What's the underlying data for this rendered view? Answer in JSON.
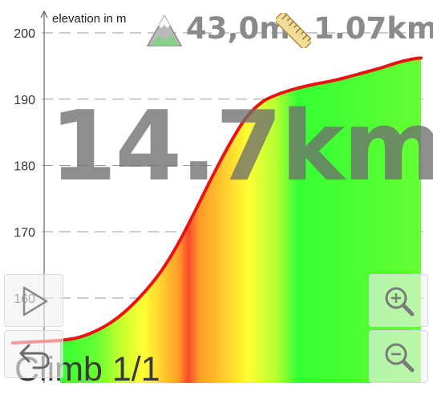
{
  "chart_data": {
    "type": "area",
    "ylabel": "elevation in m",
    "ylim": [
      152.5,
      201.5
    ],
    "yticks": [
      160,
      170,
      180,
      190,
      200
    ],
    "ytick_labels": [
      "160",
      "170",
      "180",
      "190",
      "200"
    ],
    "grid": true,
    "x_range": [
      0,
      1.07
    ],
    "x": [
      0.0,
      0.05,
      0.1,
      0.15,
      0.2,
      0.25,
      0.3,
      0.35,
      0.4,
      0.45,
      0.5,
      0.55,
      0.6,
      0.65,
      0.7,
      0.75,
      0.8,
      0.85,
      0.9,
      0.95,
      1.0,
      1.05,
      1.07
    ],
    "y": [
      153.6,
      154.0,
      154.9,
      156.3,
      158.3,
      160.9,
      164.1,
      168.2,
      173.1,
      178.2,
      183.0,
      187.1,
      189.6,
      190.8,
      191.6,
      192.2,
      192.7,
      193.3,
      194.0,
      194.7,
      195.5,
      196.1,
      196.2
    ],
    "gradient_colors": [
      "#ffff33",
      "#ff9a2a",
      "#f84b2e",
      "#ffff33",
      "#33ff33"
    ]
  },
  "stats": {
    "elevation_gain": "43,0m",
    "distance": "1.07km",
    "elevation_icon": "mountain-icon",
    "distance_icon": "ruler-icon"
  },
  "overlay": {
    "total_distance": "14.7km",
    "climb_label": "Climb 1/1"
  },
  "controls": {
    "play_icon": "play-icon",
    "back_icon": "back-arrow-icon",
    "zoom_in_icon": "zoom-in-icon",
    "zoom_out_icon": "zoom-out-icon"
  }
}
